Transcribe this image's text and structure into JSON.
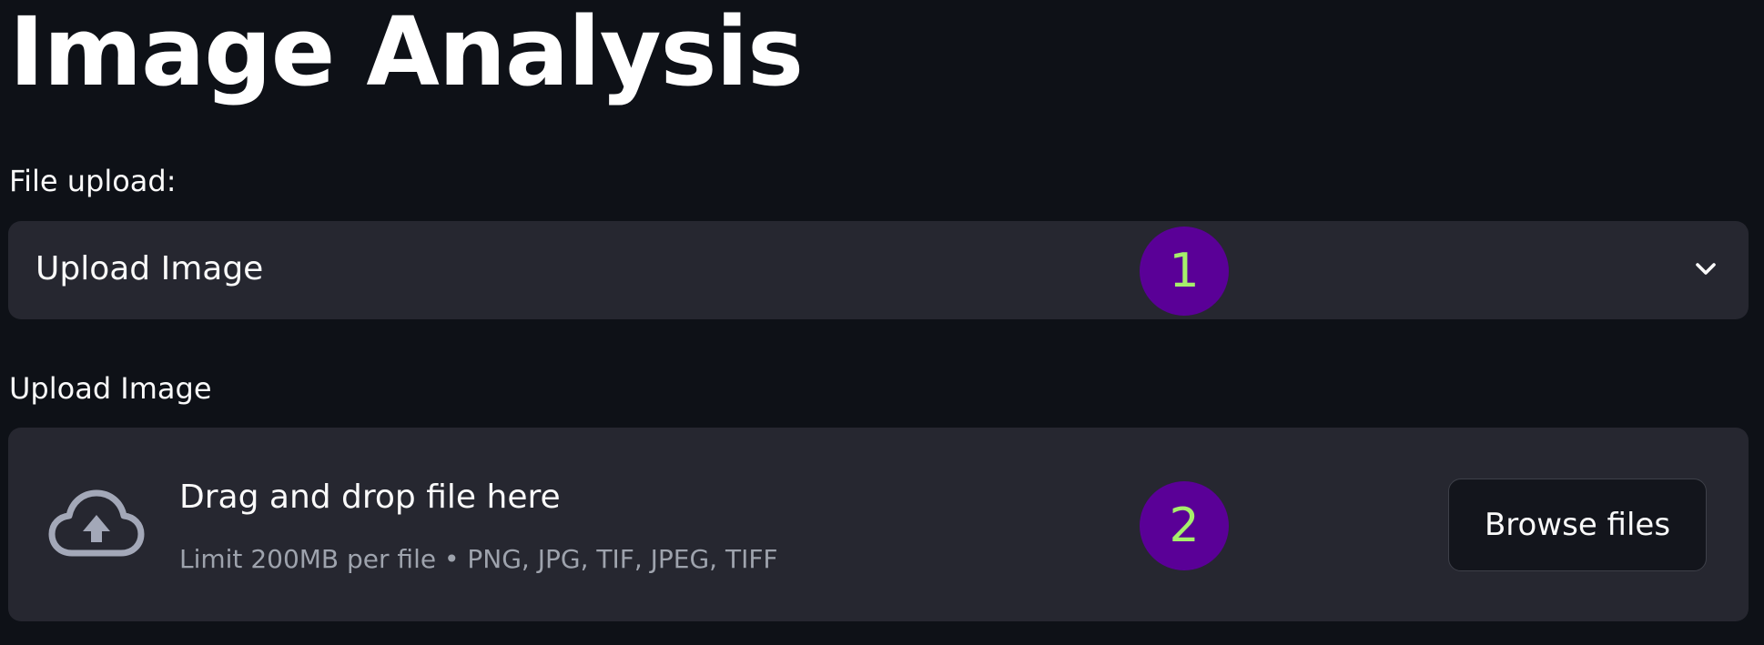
{
  "page": {
    "title": "Image Analysis"
  },
  "file_upload": {
    "label": "File upload:",
    "selected_value": "Upload Image",
    "icon": "chevron-down-icon"
  },
  "uploader": {
    "label": "Upload Image",
    "dropzone_title": "Drag and drop file here",
    "dropzone_subtitle": "Limit 200MB per file • PNG, JPG, TIF, JPEG, TIFF",
    "browse_label": "Browse files",
    "icon": "cloud-upload-icon"
  },
  "annotations": {
    "marker_1": "1",
    "marker_2": "2",
    "marker_bg": "#5a0097",
    "marker_fg": "#a6ef6b"
  },
  "colors": {
    "background": "#0e1117",
    "surface": "#262730",
    "text": "#fafafa",
    "muted_text": "#9ea3ad"
  }
}
